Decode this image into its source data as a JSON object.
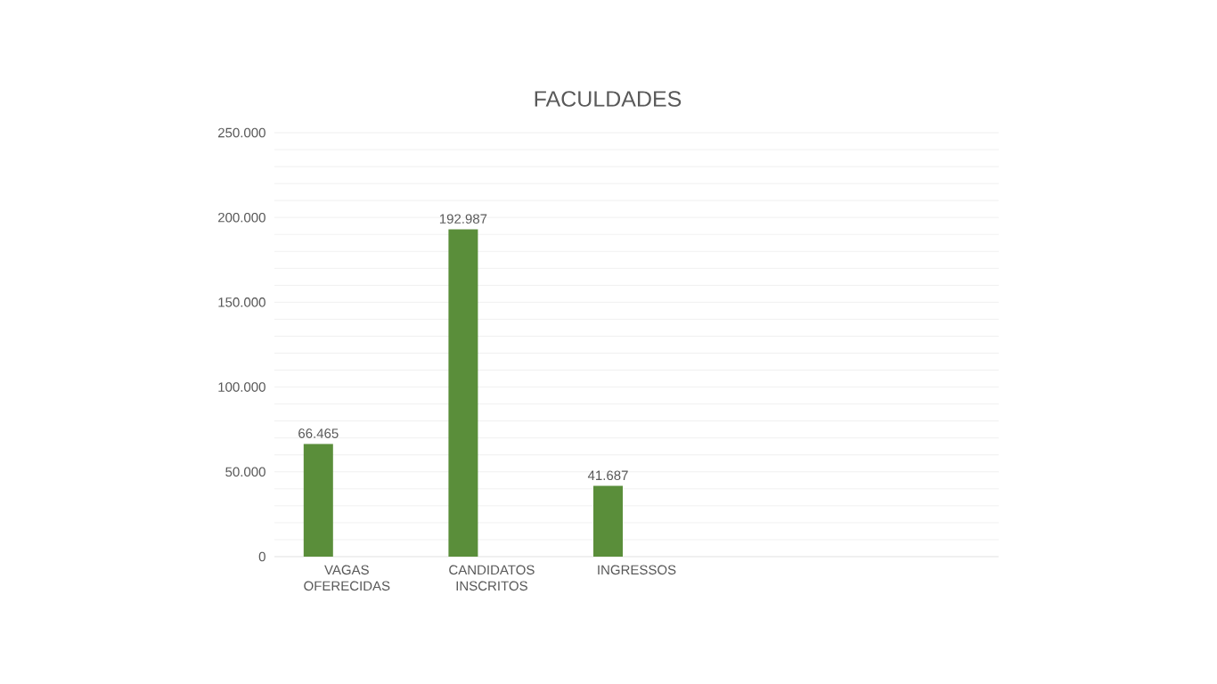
{
  "chart_data": {
    "type": "bar",
    "title": "FACULDADES",
    "categories": [
      "VAGAS OFERECIDAS",
      "CANDIDATOS INSCRITOS",
      "INGRESSOS",
      null,
      null
    ],
    "values": [
      66465,
      192987,
      41687,
      null,
      null
    ],
    "value_labels": [
      "66.465",
      "192.987",
      "41.687",
      null,
      null
    ],
    "color": "#5a8e3a",
    "ylim": [
      0,
      250000
    ],
    "yticks": [
      {
        "value": 0,
        "label": "0"
      },
      {
        "value": 10000,
        "label": null
      },
      {
        "value": 20000,
        "label": null
      },
      {
        "value": 30000,
        "label": null
      },
      {
        "value": 40000,
        "label": null
      },
      {
        "value": 50000,
        "label": "50.000"
      },
      {
        "value": 60000,
        "label": null
      },
      {
        "value": 70000,
        "label": null
      },
      {
        "value": 80000,
        "label": null
      },
      {
        "value": 90000,
        "label": null
      },
      {
        "value": 100000,
        "label": "100.000"
      },
      {
        "value": 110000,
        "label": null
      },
      {
        "value": 120000,
        "label": null
      },
      {
        "value": 130000,
        "label": null
      },
      {
        "value": 140000,
        "label": null
      },
      {
        "value": 150000,
        "label": "150.000"
      },
      {
        "value": 160000,
        "label": null
      },
      {
        "value": 170000,
        "label": null
      },
      {
        "value": 180000,
        "label": null
      },
      {
        "value": 190000,
        "label": null
      },
      {
        "value": 200000,
        "label": "200.000"
      },
      {
        "value": 210000,
        "label": null
      },
      {
        "value": 220000,
        "label": null
      },
      {
        "value": 230000,
        "label": null
      },
      {
        "value": 240000,
        "label": null
      },
      {
        "value": 250000,
        "label": "250.000"
      }
    ],
    "grid": "y"
  }
}
